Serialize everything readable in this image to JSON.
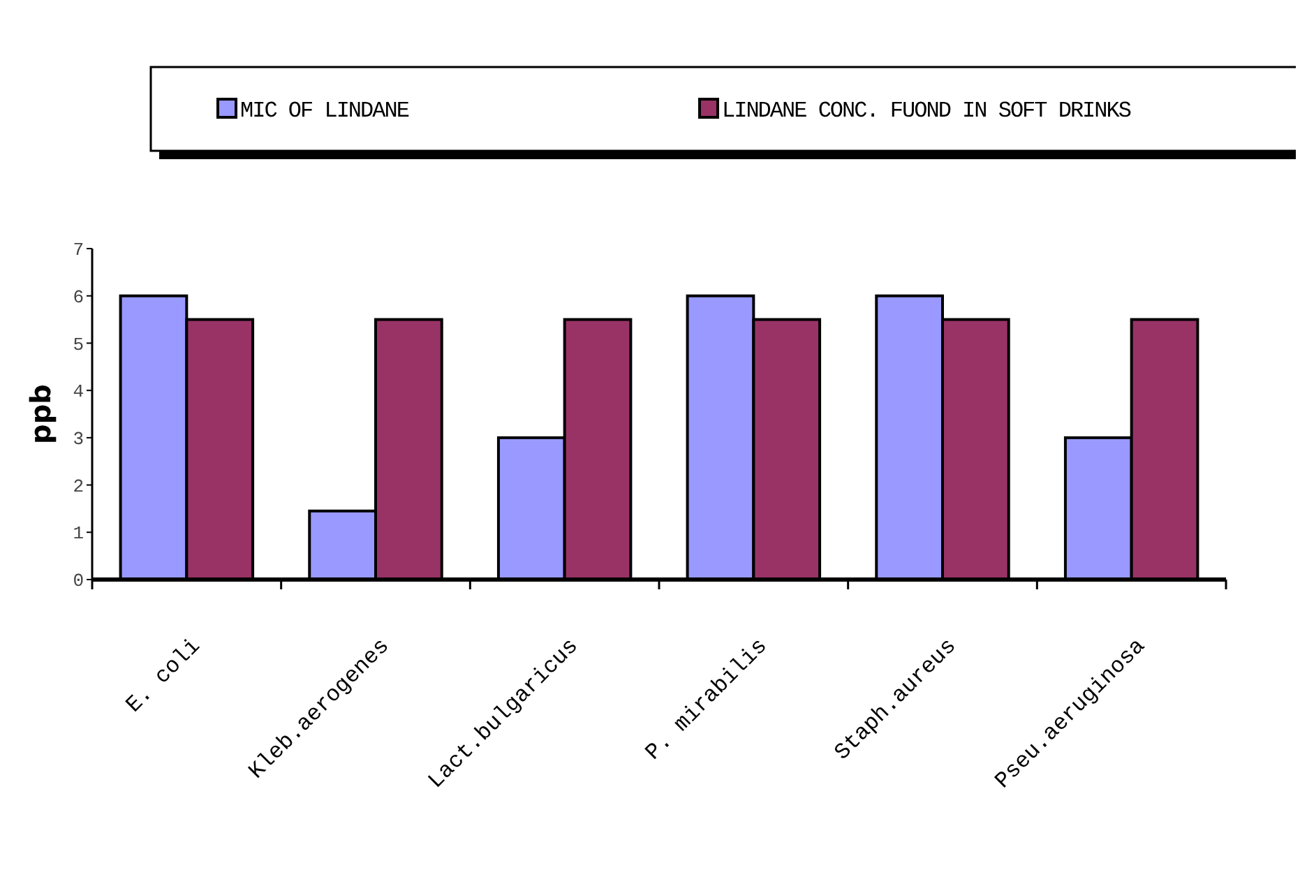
{
  "chart_data": {
    "type": "bar",
    "categories": [
      "E. coli",
      "Kleb.aerogenes",
      "Lact.bulgaricus",
      "P. mirabilis",
      "Staph.aureus",
      "Pseu.aeruginosa"
    ],
    "series": [
      {
        "name": "MIC OF LINDANE",
        "color": "#9999ff",
        "values": [
          6,
          1.45,
          3,
          6,
          6,
          3
        ]
      },
      {
        "name": "LINDANE CONC. FUOND IN SOFT DRINKS",
        "color": "#993366",
        "values": [
          5.5,
          5.5,
          5.5,
          5.5,
          5.5,
          5.5
        ]
      }
    ],
    "ylabel": "ppb",
    "ylim": [
      0,
      7
    ],
    "yticks": [
      0,
      1,
      2,
      3,
      4,
      5,
      6,
      7
    ],
    "legend": "top",
    "grid": false
  }
}
